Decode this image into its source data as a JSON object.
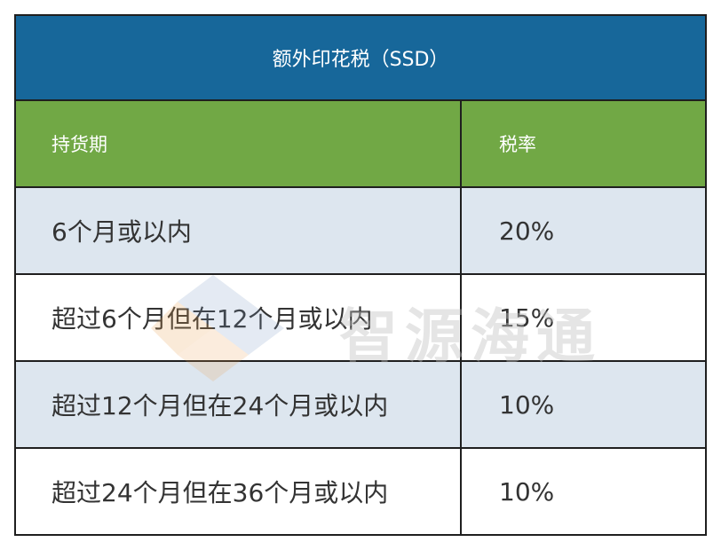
{
  "title": "额外印花税（SSD）",
  "headers": [
    "持货期",
    "税率"
  ],
  "rows": [
    {
      "period": "6个月或以内",
      "rate": "20%"
    },
    {
      "period": "超过6个月但在12个月或以内",
      "rate": "15%"
    },
    {
      "period": "超过12个月但在24个月或以内",
      "rate": "10%"
    },
    {
      "period": "超过24个月但在36个月或以内",
      "rate": "10%"
    }
  ],
  "watermark": {
    "text": "智源海通"
  },
  "colors": {
    "title_bg": "#17679a",
    "header_bg": "#71a845",
    "shade_bg": "#dde6ef"
  }
}
